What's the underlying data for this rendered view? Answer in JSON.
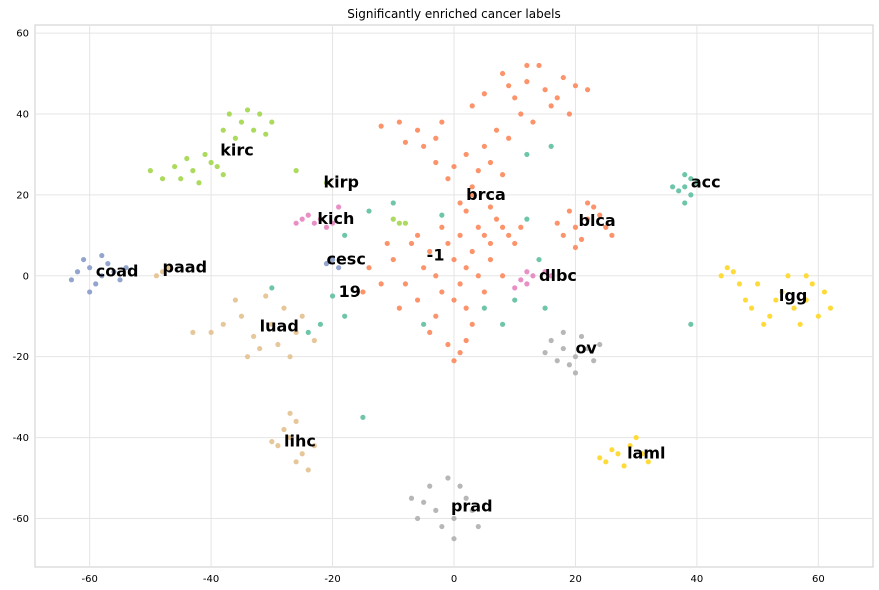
{
  "chart_data": {
    "type": "scatter",
    "title": "Significantly enriched cancer labels",
    "xlabel": "",
    "ylabel": "",
    "xlim": [
      -69,
      69
    ],
    "ylim": [
      -72,
      62
    ],
    "x_ticks": [
      -60,
      -40,
      -20,
      0,
      20,
      40,
      60
    ],
    "y_ticks": [
      -60,
      -40,
      -20,
      0,
      20,
      40,
      60
    ],
    "grid": true,
    "clusters": [
      {
        "label": "brca",
        "color": "#fc8d62",
        "points": [
          [
            12,
            48
          ],
          [
            15,
            46
          ],
          [
            10,
            44
          ],
          [
            18,
            49
          ],
          [
            8,
            50
          ],
          [
            14,
            52
          ],
          [
            20,
            47
          ],
          [
            5,
            45
          ],
          [
            11,
            40
          ],
          [
            16,
            42
          ],
          [
            3,
            42
          ],
          [
            7,
            36
          ],
          [
            5,
            32
          ],
          [
            9,
            34
          ],
          [
            2,
            30
          ],
          [
            6,
            28
          ],
          [
            4,
            26
          ],
          [
            8,
            25
          ],
          [
            0,
            27
          ],
          [
            3,
            22
          ],
          [
            -6,
            36
          ],
          [
            -9,
            38
          ],
          [
            -3,
            34
          ],
          [
            -5,
            32
          ],
          [
            -12,
            37
          ],
          [
            -8,
            33
          ],
          [
            -2,
            38
          ],
          [
            6,
            17
          ],
          [
            8,
            12
          ],
          [
            5,
            10
          ],
          [
            10,
            8
          ],
          [
            7,
            14
          ],
          [
            9,
            10
          ],
          [
            4,
            12
          ],
          [
            6,
            8
          ],
          [
            2,
            16
          ],
          [
            11,
            12
          ],
          [
            3,
            20
          ],
          [
            1,
            18
          ],
          [
            -1,
            24
          ],
          [
            -3,
            28
          ],
          [
            13,
            38
          ],
          [
            17,
            44
          ],
          [
            22,
            46
          ],
          [
            19,
            40
          ],
          [
            9,
            47
          ],
          [
            12,
            52
          ]
        ]
      },
      {
        "label": "-1",
        "color": "#fc8d62",
        "points": [
          [
            -5,
            2
          ],
          [
            -3,
            0
          ],
          [
            0,
            4
          ],
          [
            -8,
            -2
          ],
          [
            -2,
            -4
          ],
          [
            2,
            2
          ],
          [
            -10,
            4
          ],
          [
            -6,
            -6
          ],
          [
            1,
            -2
          ],
          [
            4,
            0
          ],
          [
            -4,
            6
          ],
          [
            -7,
            8
          ],
          [
            -1,
            8
          ],
          [
            3,
            6
          ],
          [
            -12,
            -2
          ],
          [
            -9,
            -8
          ],
          [
            -3,
            -10
          ],
          [
            2,
            -8
          ],
          [
            5,
            -4
          ],
          [
            -14,
            2
          ],
          [
            -11,
            8
          ],
          [
            -6,
            10
          ],
          [
            0,
            -6
          ],
          [
            3,
            -12
          ],
          [
            -4,
            -14
          ],
          [
            6,
            4
          ],
          [
            8,
            0
          ],
          [
            -2,
            12
          ],
          [
            -15,
            -4
          ],
          [
            1,
            10
          ],
          [
            -1,
            -17
          ],
          [
            1,
            -19
          ],
          [
            2,
            -16
          ],
          [
            0,
            -21
          ]
        ]
      },
      {
        "label": "blca",
        "color": "#fc8d62",
        "points": [
          [
            20,
            12
          ],
          [
            22,
            14
          ],
          [
            18,
            10
          ],
          [
            24,
            15
          ],
          [
            21,
            9
          ],
          [
            25,
            12
          ],
          [
            19,
            16
          ],
          [
            23,
            17
          ],
          [
            17,
            13
          ],
          [
            26,
            10
          ],
          [
            20,
            7
          ],
          [
            22,
            18
          ]
        ]
      },
      {
        "label": "kirc",
        "color": "#a6d854",
        "points": [
          [
            -35,
            38
          ],
          [
            -33,
            36
          ],
          [
            -37,
            40
          ],
          [
            -31,
            35
          ],
          [
            -36,
            34
          ],
          [
            -34,
            41
          ],
          [
            -30,
            38
          ],
          [
            -38,
            36
          ],
          [
            -32,
            40
          ],
          [
            -40,
            28
          ],
          [
            -43,
            26
          ],
          [
            -38,
            25
          ],
          [
            -46,
            27
          ],
          [
            -48,
            24
          ],
          [
            -41,
            30
          ],
          [
            -44,
            29
          ],
          [
            -50,
            26
          ],
          [
            -39,
            27
          ],
          [
            -42,
            23
          ],
          [
            -45,
            24
          ],
          [
            -26,
            26
          ],
          [
            -21,
            23
          ]
        ]
      },
      {
        "label": "kirp",
        "color": "#a6d854",
        "points": [
          [
            -9,
            13
          ],
          [
            -10,
            14
          ],
          [
            -8,
            13
          ]
        ]
      },
      {
        "label": "acc",
        "color": "#66c2a5",
        "points": [
          [
            38,
            22
          ],
          [
            39,
            24
          ],
          [
            37,
            21
          ],
          [
            40,
            23
          ],
          [
            38,
            25
          ],
          [
            36,
            22
          ],
          [
            39,
            20
          ],
          [
            38,
            18
          ]
        ]
      },
      {
        "label": "19",
        "color": "#66c2a5",
        "points": [
          [
            -15,
            -35
          ],
          [
            -18,
            -10
          ],
          [
            -20,
            -5
          ],
          [
            -22,
            -12
          ],
          [
            -14,
            16
          ],
          [
            12,
            14
          ],
          [
            15,
            -8
          ],
          [
            8,
            -12
          ],
          [
            -5,
            -12
          ],
          [
            16,
            32
          ],
          [
            39,
            -12
          ],
          [
            -30,
            -3
          ],
          [
            12,
            30
          ],
          [
            -2,
            15
          ],
          [
            5,
            -8
          ],
          [
            10,
            -6
          ],
          [
            -24,
            -14
          ],
          [
            -18,
            10
          ],
          [
            14,
            4
          ],
          [
            -10,
            18
          ]
        ]
      },
      {
        "label": "kich",
        "color": "#e78ac3",
        "points": [
          [
            -23,
            13
          ],
          [
            -25,
            14
          ],
          [
            -21,
            12
          ],
          [
            -24,
            15
          ],
          [
            -22,
            14
          ],
          [
            -20,
            13
          ],
          [
            -26,
            13
          ],
          [
            -19,
            17
          ]
        ]
      },
      {
        "label": "dlbc",
        "color": "#e78ac3",
        "points": [
          [
            11,
            -1
          ],
          [
            12,
            -2
          ],
          [
            13,
            0
          ],
          [
            10,
            -3
          ],
          [
            15,
            1
          ],
          [
            16,
            0
          ],
          [
            12,
            1
          ]
        ]
      },
      {
        "label": "cesc",
        "color": "#8da0cb",
        "points": [
          [
            -20,
            4
          ],
          [
            -21,
            3
          ],
          [
            -19,
            2
          ]
        ]
      },
      {
        "label": "coad",
        "color": "#8da0cb",
        "points": [
          [
            -60,
            2
          ],
          [
            -58,
            0
          ],
          [
            -62,
            1
          ],
          [
            -57,
            3
          ],
          [
            -59,
            -2
          ],
          [
            -61,
            4
          ],
          [
            -56,
            1
          ],
          [
            -63,
            -1
          ],
          [
            -58,
            5
          ],
          [
            -55,
            -1
          ],
          [
            -60,
            -4
          ],
          [
            -54,
            2
          ]
        ]
      },
      {
        "label": "lgg",
        "color": "#ffd92f",
        "points": [
          [
            46,
            1
          ],
          [
            50,
            -2
          ],
          [
            54,
            -4
          ],
          [
            58,
            -6
          ],
          [
            60,
            -10
          ],
          [
            56,
            -8
          ],
          [
            52,
            -10
          ],
          [
            48,
            -6
          ],
          [
            55,
            0
          ],
          [
            59,
            -2
          ],
          [
            61,
            -4
          ],
          [
            51,
            -12
          ],
          [
            47,
            -2
          ],
          [
            44,
            0
          ],
          [
            53,
            -6
          ],
          [
            57,
            -12
          ],
          [
            62,
            -8
          ],
          [
            49,
            -8
          ],
          [
            58,
            0
          ],
          [
            45,
            2
          ]
        ]
      },
      {
        "label": "laml",
        "color": "#ffd92f",
        "points": [
          [
            27,
            -44
          ],
          [
            29,
            -42
          ],
          [
            25,
            -46
          ],
          [
            31,
            -44
          ],
          [
            28,
            -47
          ],
          [
            30,
            -40
          ],
          [
            26,
            -43
          ],
          [
            32,
            -46
          ],
          [
            24,
            -45
          ]
        ]
      },
      {
        "label": "luad",
        "color": "#e5c494",
        "points": [
          [
            -35,
            -10
          ],
          [
            -30,
            -12
          ],
          [
            -33,
            -15
          ],
          [
            -28,
            -8
          ],
          [
            -26,
            -14
          ],
          [
            -38,
            -12
          ],
          [
            -32,
            -18
          ],
          [
            -27,
            -20
          ],
          [
            -36,
            -6
          ],
          [
            -31,
            -5
          ],
          [
            -29,
            -17
          ],
          [
            -34,
            -20
          ],
          [
            -25,
            -10
          ],
          [
            -40,
            -14
          ],
          [
            -43,
            -14
          ],
          [
            -23,
            -16
          ]
        ]
      },
      {
        "label": "lihc",
        "color": "#e5c494",
        "points": [
          [
            -27,
            -40
          ],
          [
            -25,
            -44
          ],
          [
            -29,
            -42
          ],
          [
            -26,
            -36
          ],
          [
            -24,
            -48
          ],
          [
            -28,
            -38
          ],
          [
            -30,
            -41
          ],
          [
            -26,
            -46
          ],
          [
            -23,
            -42
          ],
          [
            -27,
            -34
          ]
        ]
      },
      {
        "label": "paad",
        "color": "#e5c494",
        "points": [
          [
            -48,
            1
          ],
          [
            -47,
            2
          ],
          [
            -49,
            0
          ]
        ]
      },
      {
        "label": "ov",
        "color": "#b3b3b3",
        "points": [
          [
            18,
            -18
          ],
          [
            20,
            -20
          ],
          [
            16,
            -16
          ],
          [
            22,
            -18
          ],
          [
            19,
            -22
          ],
          [
            17,
            -21
          ],
          [
            21,
            -15
          ],
          [
            23,
            -21
          ],
          [
            15,
            -19
          ],
          [
            20,
            -24
          ],
          [
            18,
            -14
          ],
          [
            24,
            -17
          ]
        ]
      },
      {
        "label": "prad",
        "color": "#b3b3b3",
        "points": [
          [
            -3,
            -58
          ],
          [
            0,
            -60
          ],
          [
            -5,
            -56
          ],
          [
            2,
            -55
          ],
          [
            -2,
            -62
          ],
          [
            1,
            -52
          ],
          [
            -6,
            -60
          ],
          [
            3,
            -58
          ],
          [
            -4,
            -52
          ],
          [
            0,
            -65
          ],
          [
            -7,
            -55
          ],
          [
            4,
            -62
          ],
          [
            -1,
            -50
          ]
        ]
      }
    ],
    "annotations": [
      {
        "text": "brca",
        "x": 2,
        "y": 20
      },
      {
        "text": "-1",
        "x": -4.5,
        "y": 5
      },
      {
        "text": "blca",
        "x": 20.5,
        "y": 13.5
      },
      {
        "text": "kirc",
        "x": -38.5,
        "y": 31
      },
      {
        "text": "kirp",
        "x": -21.5,
        "y": 23
      },
      {
        "text": "acc",
        "x": 39,
        "y": 23
      },
      {
        "text": "19",
        "x": -19,
        "y": -4
      },
      {
        "text": "kich",
        "x": -22.5,
        "y": 14
      },
      {
        "text": "dlbc",
        "x": 14,
        "y": 0
      },
      {
        "text": "cesc",
        "x": -21,
        "y": 4
      },
      {
        "text": "coad",
        "x": -59,
        "y": 1
      },
      {
        "text": "paad",
        "x": -48,
        "y": 2
      },
      {
        "text": "lgg",
        "x": 53.5,
        "y": -5
      },
      {
        "text": "laml",
        "x": 28.5,
        "y": -44
      },
      {
        "text": "luad",
        "x": -32,
        "y": -12.5
      },
      {
        "text": "lihc",
        "x": -28,
        "y": -41
      },
      {
        "text": "ov",
        "x": 20,
        "y": -18
      },
      {
        "text": "prad",
        "x": -0.5,
        "y": -57
      }
    ]
  }
}
